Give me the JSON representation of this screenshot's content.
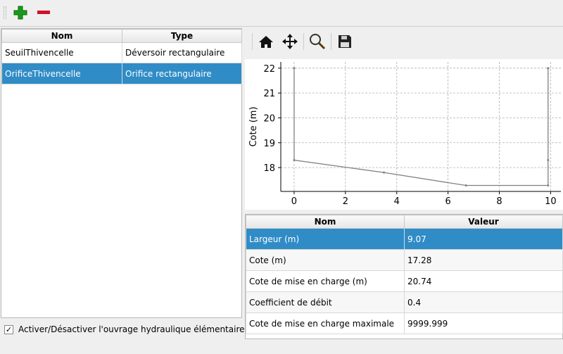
{
  "toolbar": {
    "add_icon": "plus-icon",
    "remove_icon": "minus-icon"
  },
  "structures": {
    "headers": [
      "Nom",
      "Type"
    ],
    "rows": [
      [
        "SeuilThivencelle",
        "Déversoir rectangulaire"
      ],
      [
        "OrificeThivencelle",
        "Orifice rectangulaire"
      ]
    ],
    "selected": 1
  },
  "checkbox": {
    "label": "Activer/Désactiver l'ouvrage hydraulique élémentaire",
    "checked": true
  },
  "plot_toolbar": {
    "icons": [
      "home-icon",
      "pan-icon",
      "zoom-icon",
      "save-icon"
    ]
  },
  "chart_data": {
    "type": "line",
    "ylabel": "Cote (m)",
    "xlabel": "",
    "xlim": [
      -0.52,
      10.4
    ],
    "ylim": [
      17.04,
      22.25
    ],
    "xticks": [
      0,
      2,
      4,
      6,
      8,
      10
    ],
    "yticks": [
      18,
      19,
      20,
      21,
      22
    ],
    "grid": true,
    "color": "#808080",
    "x": [
      0,
      0,
      3.5,
      6.7,
      9.9,
      9.9,
      9.9
    ],
    "y": [
      22,
      18.3,
      17.8,
      17.28,
      17.28,
      18.3,
      22
    ]
  },
  "params": {
    "headers": [
      "Nom",
      "Valeur"
    ],
    "rows": [
      [
        "Largeur (m)",
        "9.07"
      ],
      [
        "Cote (m)",
        "17.28"
      ],
      [
        "Cote de mise en charge (m)",
        "20.74"
      ],
      [
        "Coefficient de débit",
        "0.4"
      ],
      [
        "Cote de mise en charge maximale",
        "9999.999"
      ]
    ],
    "selected": 0
  }
}
